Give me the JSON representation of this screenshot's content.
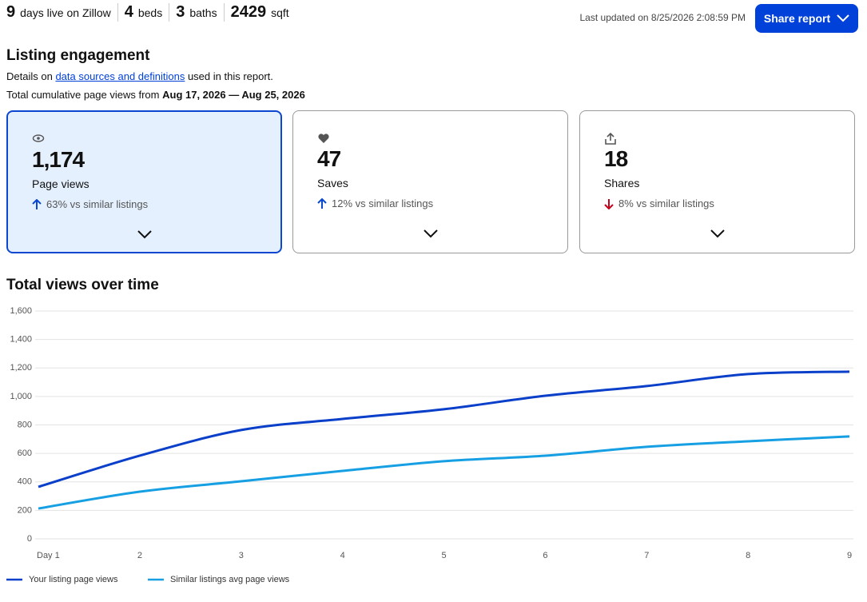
{
  "header": {
    "stats": [
      {
        "value": "9",
        "label": "days live on Zillow"
      },
      {
        "value": "4",
        "label": "beds"
      },
      {
        "value": "3",
        "label": "baths"
      },
      {
        "value": "2429",
        "label": "sqft"
      }
    ],
    "last_updated": "Last updated on 8/25/2026 2:08:59 PM",
    "share_button": "Share report"
  },
  "engagement": {
    "title": "Listing engagement",
    "details": {
      "before": "Details on",
      "link": "data sources and definitions",
      "after": "used in this report."
    },
    "range": {
      "text": "Total cumulative page views from",
      "dates": "Aug 17, 2026 — Aug 25, 2026"
    },
    "cards": [
      {
        "value": "1,174",
        "label": "Page views",
        "comparison": "63% vs similar listings"
      },
      {
        "value": "47",
        "label": "Saves",
        "comparison": "12% vs similar listings"
      },
      {
        "value": "18",
        "label": "Shares",
        "comparison": "8% vs similar listings"
      }
    ]
  },
  "chart_data": {
    "type": "line",
    "title": "Total views over time",
    "categories": [
      "Day 1",
      "2",
      "3",
      "4",
      "5",
      "6",
      "7",
      "8",
      "9"
    ],
    "series": [
      {
        "name": "Your listing page views",
        "color": "#0a3fc9",
        "values": [
          365,
          584,
          764,
          842,
          910,
          1005,
          1073,
          1157,
          1174
        ]
      },
      {
        "name": "Similar listings avg page views",
        "color": "#16a0e3",
        "values": [
          213,
          331,
          404,
          477,
          545,
          584,
          646,
          685,
          719
        ]
      }
    ],
    "ylim": [
      0,
      1600
    ],
    "yticks": [
      0,
      200,
      400,
      600,
      800,
      {
        "value": 1000,
        "label": "1,000"
      },
      {
        "value": 1200,
        "label": "1,200"
      },
      {
        "value": 1400,
        "label": "1,400"
      },
      {
        "value": 1600,
        "label": "1,600"
      }
    ],
    "grid": true
  }
}
